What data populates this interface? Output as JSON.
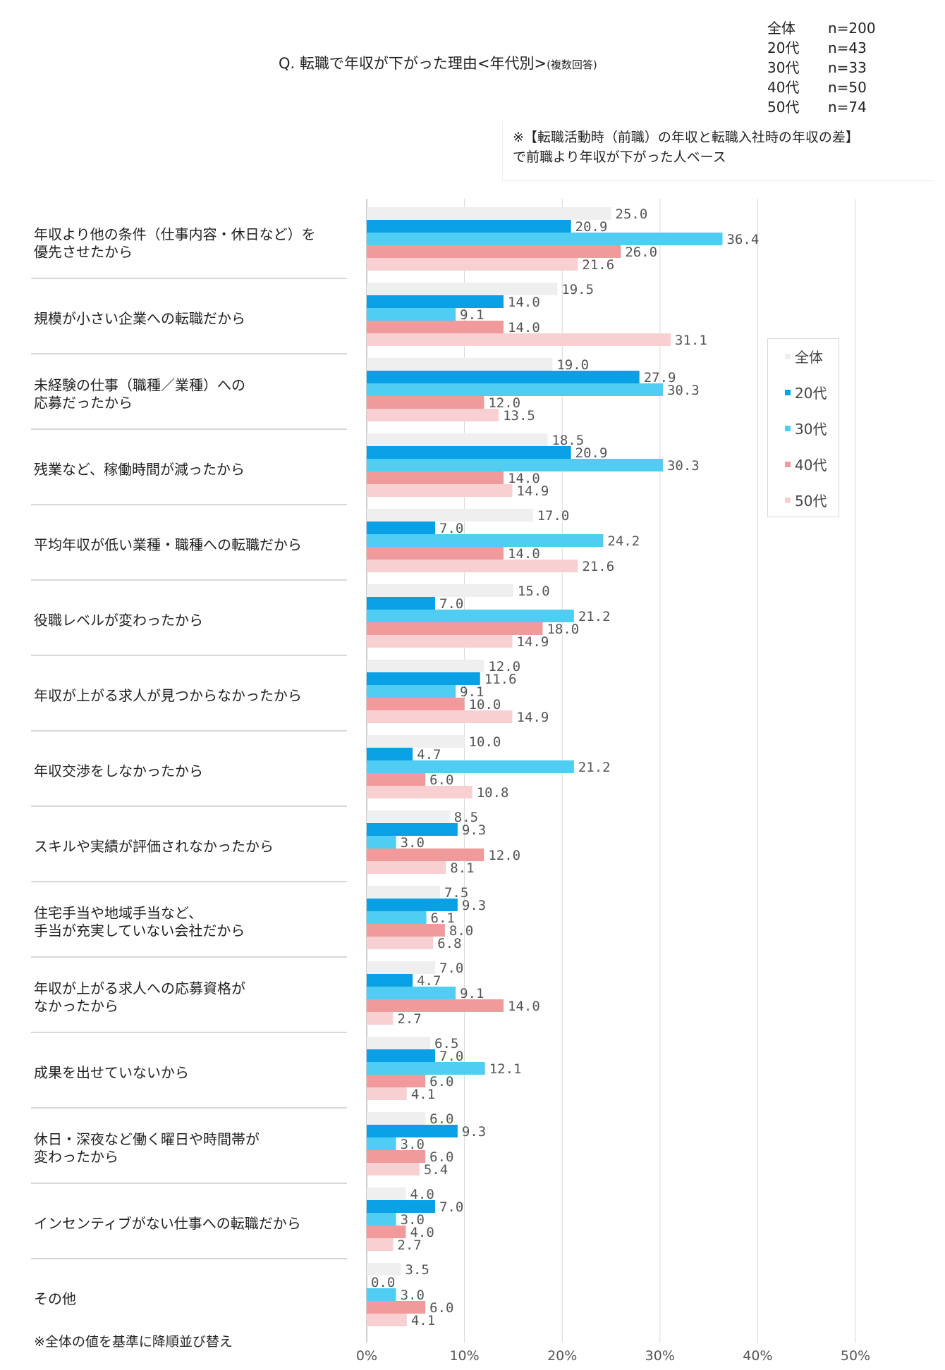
{
  "header": {
    "title": "Q. 転職で年収が下がった理由<年代別>",
    "title_sub": "(複数回答)",
    "note_line1": "※【転職活動時（前職）の年収と転職入社時の年収の差】",
    "note_line2": "で前職より年収が下がった人ベース"
  },
  "sample_sizes": [
    {
      "label": "全体",
      "n": "n=200"
    },
    {
      "label": "20代",
      "n": "n=43"
    },
    {
      "label": "30代",
      "n": "n=33"
    },
    {
      "label": "40代",
      "n": "n=50"
    },
    {
      "label": "50代",
      "n": "n=74"
    }
  ],
  "footnote": "※全体の値を基準に降順並び替え",
  "colors": {
    "全体": "#efefef",
    "20代": "#0aa0e6",
    "30代": "#4fcdf2",
    "40代": "#f09a9c",
    "50代": "#f9d0d2",
    "grid": "#d9d9d9",
    "separator": "#cccccc"
  },
  "chart_data": {
    "type": "bar",
    "orientation": "horizontal",
    "xlim": [
      0,
      50
    ],
    "xticks": [
      "0%",
      "10%",
      "20%",
      "30%",
      "40%",
      "50%"
    ],
    "legend_position": "right",
    "categories": [
      [
        "年収より他の条件（仕事内容・休日など）を",
        "優先させたから"
      ],
      [
        "規模が小さい企業への転職だから"
      ],
      [
        "未経験の仕事（職種／業種）への",
        "応募だったから"
      ],
      [
        "残業など、稼働時間が減ったから"
      ],
      [
        "平均年収が低い業種・職種への転職だから"
      ],
      [
        "役職レベルが変わったから"
      ],
      [
        "年収が上がる求人が見つからなかったから"
      ],
      [
        "年収交渉をしなかったから"
      ],
      [
        "スキルや実績が評価されなかったから"
      ],
      [
        "住宅手当や地域手当など、",
        "手当が充実していない会社だから"
      ],
      [
        "年収が上がる求人への応募資格が",
        "なかったから"
      ],
      [
        "成果を出せていないから"
      ],
      [
        "休日・深夜など働く曜日や時間帯が",
        "変わったから"
      ],
      [
        "インセンティブがない仕事への転職だから"
      ],
      [
        "その他"
      ]
    ],
    "series": [
      {
        "name": "全体",
        "values": [
          25.0,
          19.5,
          19.0,
          18.5,
          17.0,
          15.0,
          12.0,
          10.0,
          8.5,
          7.5,
          7.0,
          6.5,
          6.0,
          4.0,
          3.5
        ]
      },
      {
        "name": "20代",
        "values": [
          20.9,
          14.0,
          27.9,
          20.9,
          7.0,
          7.0,
          11.6,
          4.7,
          9.3,
          9.3,
          4.7,
          7.0,
          9.3,
          7.0,
          0.0
        ]
      },
      {
        "name": "30代",
        "values": [
          36.4,
          9.1,
          30.3,
          30.3,
          24.2,
          21.2,
          9.1,
          21.2,
          3.0,
          6.1,
          9.1,
          12.1,
          3.0,
          3.0,
          3.0
        ]
      },
      {
        "name": "40代",
        "values": [
          26.0,
          14.0,
          12.0,
          14.0,
          14.0,
          18.0,
          10.0,
          6.0,
          12.0,
          8.0,
          14.0,
          6.0,
          6.0,
          4.0,
          6.0
        ]
      },
      {
        "name": "50代",
        "values": [
          21.6,
          31.1,
          13.5,
          14.9,
          21.6,
          14.9,
          14.9,
          10.8,
          8.1,
          6.8,
          2.7,
          4.1,
          5.4,
          2.7,
          4.1
        ]
      }
    ]
  }
}
